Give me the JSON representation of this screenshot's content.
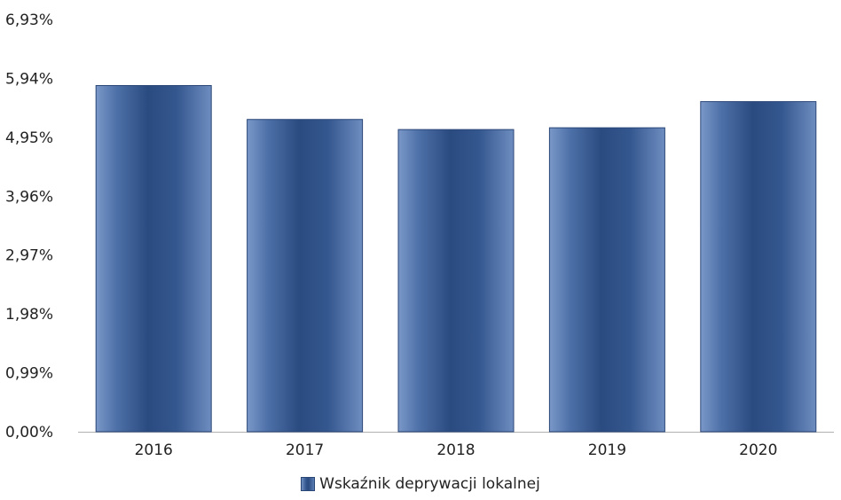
{
  "chart_data": {
    "type": "bar",
    "categories": [
      "2016",
      "2017",
      "2018",
      "2019",
      "2020"
    ],
    "series": [
      {
        "name": "Wskaźnik deprywacji lokalnej",
        "values": [
          5.82,
          5.25,
          5.08,
          5.11,
          5.55
        ]
      }
    ],
    "yticks": [
      "0,00%",
      "0,99%",
      "1,98%",
      "2,97%",
      "3,96%",
      "4,95%",
      "5,94%",
      "6,93%"
    ],
    "ylim": [
      0,
      6.93
    ],
    "grid": false,
    "legend_position": "bottom-center",
    "colors": {
      "bar_dark": "#2a4b80",
      "bar_mid": "#3a5f99",
      "bar_light": "#7a98c8",
      "axis": "#b0b0b0",
      "text": "#222222"
    }
  }
}
